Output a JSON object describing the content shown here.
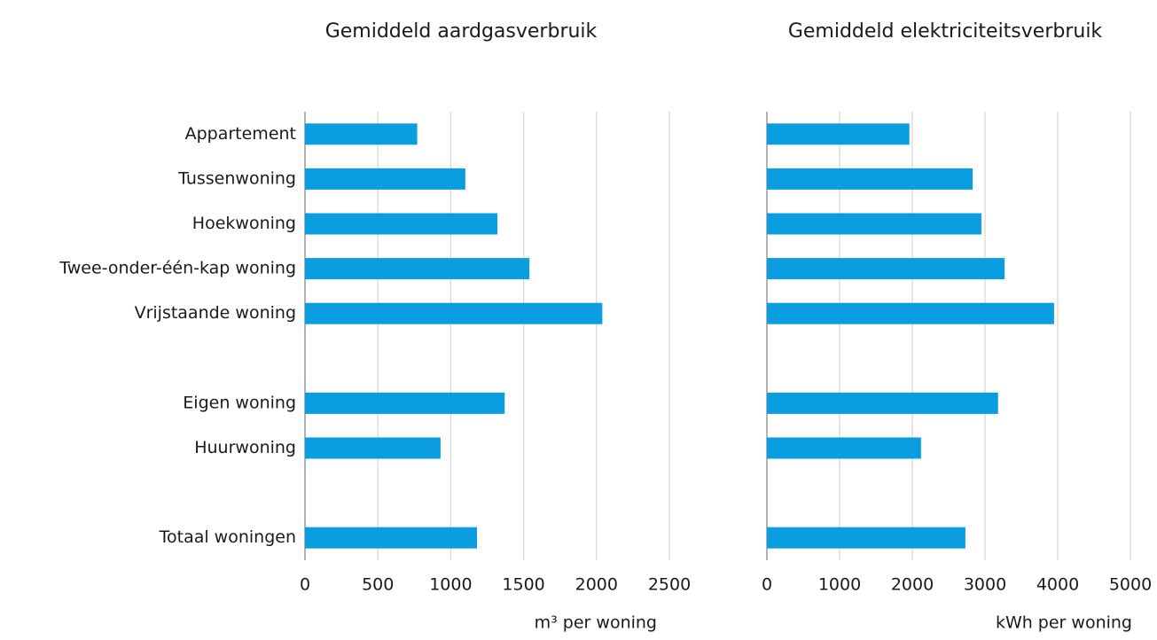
{
  "chart_data": [
    {
      "type": "bar",
      "orientation": "horizontal",
      "title": "Gemiddeld aardgasverbruik",
      "categories": [
        "Appartement",
        "Tussenwoning",
        "Hoekwoning",
        "Twee-onder-één-kap woning",
        "Vrijstaande woning",
        null,
        "Eigen woning",
        "Huurwoning",
        null,
        "Totaal woningen"
      ],
      "values": [
        770,
        1100,
        1320,
        1540,
        2040,
        null,
        1370,
        930,
        null,
        1180
      ],
      "color": "#0a9ddf",
      "xlim": [
        0,
        2500
      ],
      "xticks": [
        0,
        500,
        1000,
        1500,
        2000,
        2500
      ],
      "grid": true,
      "x_label": "m³ per woning"
    },
    {
      "type": "bar",
      "orientation": "horizontal",
      "title": "Gemiddeld elektriciteitsverbruik",
      "values": [
        1960,
        2830,
        2950,
        3270,
        3950,
        null,
        3180,
        2120,
        null,
        2730
      ],
      "color": "#0a9ddf",
      "xlim": [
        0,
        5000
      ],
      "xticks": [
        0,
        1000,
        2000,
        3000,
        4000,
        5000
      ],
      "grid": true,
      "x_label": "kWh per woning"
    }
  ]
}
